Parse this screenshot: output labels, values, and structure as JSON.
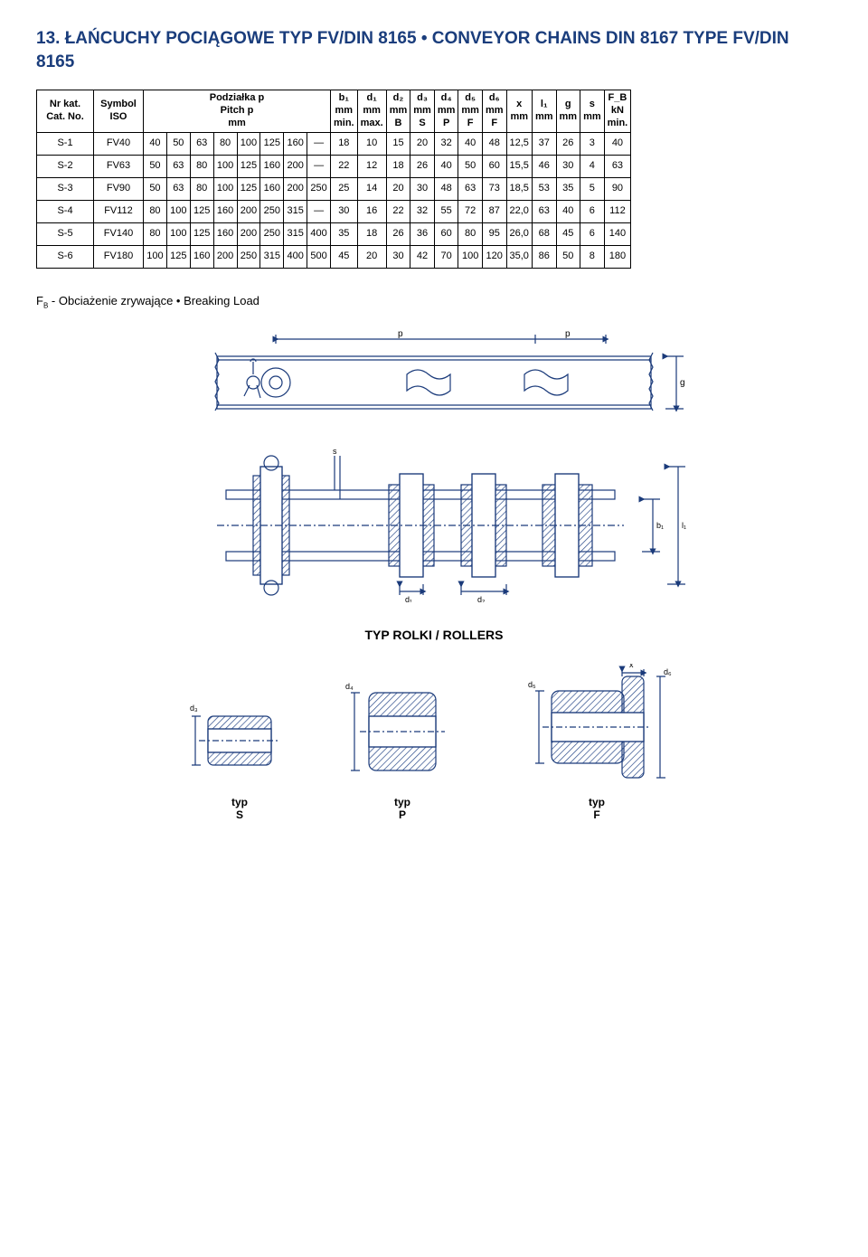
{
  "title": "13. ŁAŃCUCHY POCIĄGOWE TYP FV/DIN 8165 • CONVEYOR CHAINS DIN 8167 TYPE FV/DIN 8165",
  "footer_note_html": "F_B - Obciażenie zrywające • Breaking Load",
  "table": {
    "headers": {
      "c0": "Nr kat. Cat. No.",
      "c1": "Symbol ISO",
      "pitch_top": "Podziałka p",
      "pitch_mid": "Pitch p",
      "pitch_bot": "mm",
      "b1_l1": "b₁",
      "b1_l2": "mm",
      "b1_l3": "min.",
      "d1_l1": "d₁",
      "d1_l2": "mm",
      "d1_l3": "max.",
      "d2_l1": "d₂",
      "d2_l2": "mm",
      "d2_l3": "B",
      "d3_l1": "d₃",
      "d3_l2": "mm",
      "d3_l3": "S",
      "d4_l1": "d₄",
      "d4_l2": "mm",
      "d4_l3": "P",
      "d5_l1": "d₅",
      "d5_l2": "mm",
      "d5_l3": "F",
      "d6_l1": "d₆",
      "d6_l2": "mm",
      "d6_l3": "F",
      "x_l1": "x",
      "x_l2": "mm",
      "l1_l1": "l₁",
      "l1_l2": "mm",
      "g_l1": "g",
      "g_l2": "mm",
      "s_l1": "s",
      "s_l2": "mm",
      "fb_l1": "F_B",
      "fb_l2": "kN",
      "fb_l3": "min."
    },
    "rows": [
      {
        "cat": "S-1",
        "sym": "FV40",
        "p": [
          "40",
          "50",
          "63",
          "80",
          "100",
          "125",
          "160",
          "—"
        ],
        "b1": "18",
        "d1": "10",
        "d2": "15",
        "d3": "20",
        "d4": "32",
        "d5": "40",
        "d6": "48",
        "x": "12,5",
        "l1": "37",
        "g": "26",
        "s": "3",
        "fb": "40"
      },
      {
        "cat": "S-2",
        "sym": "FV63",
        "p": [
          "50",
          "63",
          "80",
          "100",
          "125",
          "160",
          "200",
          "—"
        ],
        "b1": "22",
        "d1": "12",
        "d2": "18",
        "d3": "26",
        "d4": "40",
        "d5": "50",
        "d6": "60",
        "x": "15,5",
        "l1": "46",
        "g": "30",
        "s": "4",
        "fb": "63"
      },
      {
        "cat": "S-3",
        "sym": "FV90",
        "p": [
          "50",
          "63",
          "80",
          "100",
          "125",
          "160",
          "200",
          "250"
        ],
        "b1": "25",
        "d1": "14",
        "d2": "20",
        "d3": "30",
        "d4": "48",
        "d5": "63",
        "d6": "73",
        "x": "18,5",
        "l1": "53",
        "g": "35",
        "s": "5",
        "fb": "90"
      },
      {
        "cat": "S-4",
        "sym": "FV112",
        "p": [
          "80",
          "100",
          "125",
          "160",
          "200",
          "250",
          "315",
          "—"
        ],
        "b1": "30",
        "d1": "16",
        "d2": "22",
        "d3": "32",
        "d4": "55",
        "d5": "72",
        "d6": "87",
        "x": "22,0",
        "l1": "63",
        "g": "40",
        "s": "6",
        "fb": "112"
      },
      {
        "cat": "S-5",
        "sym": "FV140",
        "p": [
          "80",
          "100",
          "125",
          "160",
          "200",
          "250",
          "315",
          "400"
        ],
        "b1": "35",
        "d1": "18",
        "d2": "26",
        "d3": "36",
        "d4": "60",
        "d5": "80",
        "d6": "95",
        "x": "26,0",
        "l1": "68",
        "g": "45",
        "s": "6",
        "fb": "140"
      },
      {
        "cat": "S-6",
        "sym": "FV180",
        "p": [
          "100",
          "125",
          "160",
          "200",
          "250",
          "315",
          "400",
          "500"
        ],
        "b1": "45",
        "d1": "20",
        "d2": "30",
        "d3": "42",
        "d4": "70",
        "d5": "100",
        "d6": "120",
        "x": "35,0",
        "l1": "86",
        "g": "50",
        "s": "8",
        "fb": "180"
      }
    ]
  },
  "diagram": {
    "rollers_title": "TYP ROLKI / ROLLERS",
    "type_S": "typ\nS",
    "type_P": "typ\nP",
    "type_F": "typ\nF",
    "labels": {
      "p": "p",
      "g": "g",
      "s": "s",
      "b1": "b₁",
      "l1": "l₁",
      "d1": "d₁",
      "d2": "d₂",
      "d3": "d₃",
      "d4": "d₄",
      "d5": "d₅",
      "d6": "d₆",
      "x": "x"
    },
    "colors": {
      "line": "#1a3a7a",
      "hatch": "#2a4a8a",
      "fill": "#ffffff"
    }
  }
}
